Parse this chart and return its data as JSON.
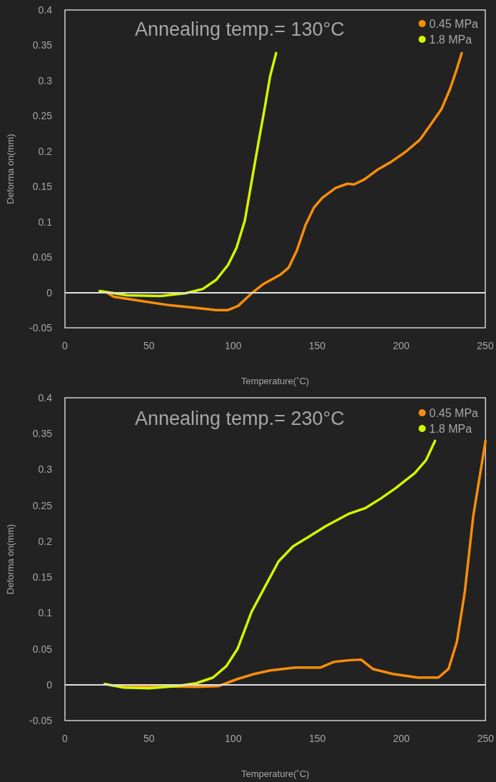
{
  "chart_data": [
    {
      "type": "line",
      "title": "Annealing temp.= 130°C",
      "xlabel": "Temperature(˚C)",
      "ylabel": "Deforma on(mm)",
      "xlim": [
        0,
        250
      ],
      "xticks": [
        0,
        50,
        100,
        150,
        200,
        250
      ],
      "ylim": [
        -0.05,
        0.4
      ],
      "yticks": [
        -0.05,
        0,
        0.05,
        0.1,
        0.15,
        0.2,
        0.25,
        0.3,
        0.35,
        0.4
      ],
      "grid": false,
      "legend": "top right",
      "marker": "none",
      "line_style": "solid",
      "ref_lines": [
        {
          "axis": "y",
          "value": 0,
          "color": "#e0e0e0"
        }
      ],
      "series": [
        {
          "name": "0.45 MPa",
          "color": "#f98d0c",
          "x": [
            24.8,
            29,
            45.5,
            62,
            78.5,
            90,
            96.7,
            103,
            111.6,
            118,
            128,
            133,
            138,
            143,
            148,
            153,
            161,
            168,
            172,
            178,
            186,
            194,
            202.5,
            211,
            217,
            224,
            229,
            233,
            236
          ],
          "values": [
            0,
            -0.006,
            -0.012,
            -0.018,
            -0.022,
            -0.025,
            -0.025,
            -0.019,
            0,
            0.012,
            0.025,
            0.035,
            0.06,
            0.095,
            0.12,
            0.134,
            0.148,
            0.154,
            0.153,
            0.16,
            0.174,
            0.185,
            0.199,
            0.216,
            0.236,
            0.26,
            0.288,
            0.316,
            0.339
          ]
        },
        {
          "name": "1.8 MPa",
          "color": "#d4f500",
          "x": [
            20.7,
            37,
            57,
            72,
            82,
            90,
            97,
            102,
            107,
            111.6,
            115,
            119,
            122,
            125.6
          ],
          "values": [
            0.002,
            -0.004,
            -0.005,
            -0.001,
            0.005,
            0.018,
            0.039,
            0.063,
            0.102,
            0.165,
            0.211,
            0.264,
            0.306,
            0.339
          ]
        }
      ]
    },
    {
      "type": "line",
      "title": "Annealing temp.= 230°C",
      "xlabel": "Temperature(˚C)",
      "ylabel": "Deforma on(mm)",
      "xlim": [
        0,
        250
      ],
      "xticks": [
        0,
        50,
        100,
        150,
        200,
        250
      ],
      "ylim": [
        -0.05,
        0.4
      ],
      "yticks": [
        -0.05,
        0,
        0.05,
        0.1,
        0.15,
        0.2,
        0.25,
        0.3,
        0.35,
        0.4
      ],
      "grid": false,
      "legend": "top right",
      "marker": "none",
      "line_style": "solid",
      "ref_lines": [
        {
          "axis": "y",
          "value": 0,
          "color": "#e0e0e0"
        }
      ],
      "series": [
        {
          "name": "0.45 MPa",
          "color": "#f98d0c",
          "x": [
            33,
            55,
            78,
            91,
            102.6,
            112.5,
            122,
            137,
            152,
            160,
            168.5,
            176,
            183,
            195,
            209.7,
            222,
            228,
            233,
            237.7,
            242.7,
            250
          ],
          "values": [
            -0.001,
            -0.002,
            -0.003,
            -0.002,
            0.008,
            0.015,
            0.02,
            0.024,
            0.024,
            0.032,
            0.034,
            0.035,
            0.022,
            0.015,
            0.01,
            0.01,
            0.022,
            0.06,
            0.13,
            0.235,
            0.34
          ]
        },
        {
          "name": "1.8 MPa",
          "color": "#d4f500",
          "x": [
            23.6,
            35,
            50,
            66,
            78,
            88,
            96,
            102.6,
            111,
            119,
            127,
            135.6,
            145.5,
            155,
            168.5,
            178.4,
            188,
            196.5,
            208,
            214.6,
            220
          ],
          "values": [
            0.001,
            -0.004,
            -0.005,
            -0.002,
            0.002,
            0.01,
            0.026,
            0.05,
            0.102,
            0.137,
            0.172,
            0.193,
            0.207,
            0.221,
            0.238,
            0.246,
            0.26,
            0.274,
            0.295,
            0.313,
            0.34
          ]
        }
      ]
    }
  ]
}
